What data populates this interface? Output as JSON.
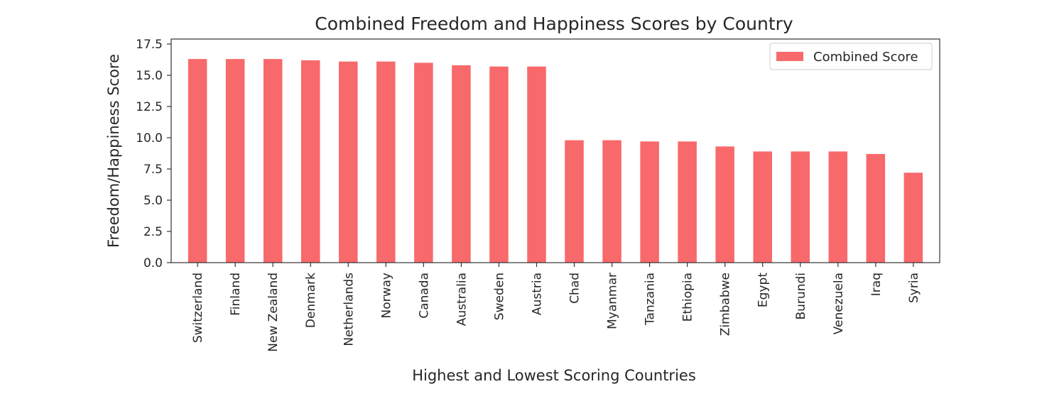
{
  "chart_data": {
    "type": "bar",
    "title": "Combined Freedom and Happiness Scores by Country",
    "xlabel": "Highest and Lowest Scoring Countries",
    "ylabel": "Freedom/Happiness Score",
    "categories": [
      "Switzerland",
      "Finland",
      "New Zealand",
      "Denmark",
      "Netherlands",
      "Norway",
      "Canada",
      "Australia",
      "Sweden",
      "Austria",
      "Chad",
      "Myanmar",
      "Tanzania",
      "Ethiopia",
      "Zimbabwe",
      "Egypt",
      "Burundi",
      "Venezuela",
      "Iraq",
      "Syria"
    ],
    "series": [
      {
        "name": "Combined Score",
        "values": [
          16.3,
          16.3,
          16.3,
          16.2,
          16.1,
          16.1,
          16.0,
          15.8,
          15.7,
          15.7,
          9.8,
          9.8,
          9.7,
          9.7,
          9.3,
          8.9,
          8.9,
          8.9,
          8.7,
          7.2
        ],
        "color": "#f8696b"
      }
    ],
    "ylim": [
      0,
      17.9
    ],
    "yticks": [
      "0.0",
      "2.5",
      "5.0",
      "7.5",
      "10.0",
      "12.5",
      "15.0",
      "17.5"
    ],
    "grid": false,
    "legend_position": "top-right"
  }
}
